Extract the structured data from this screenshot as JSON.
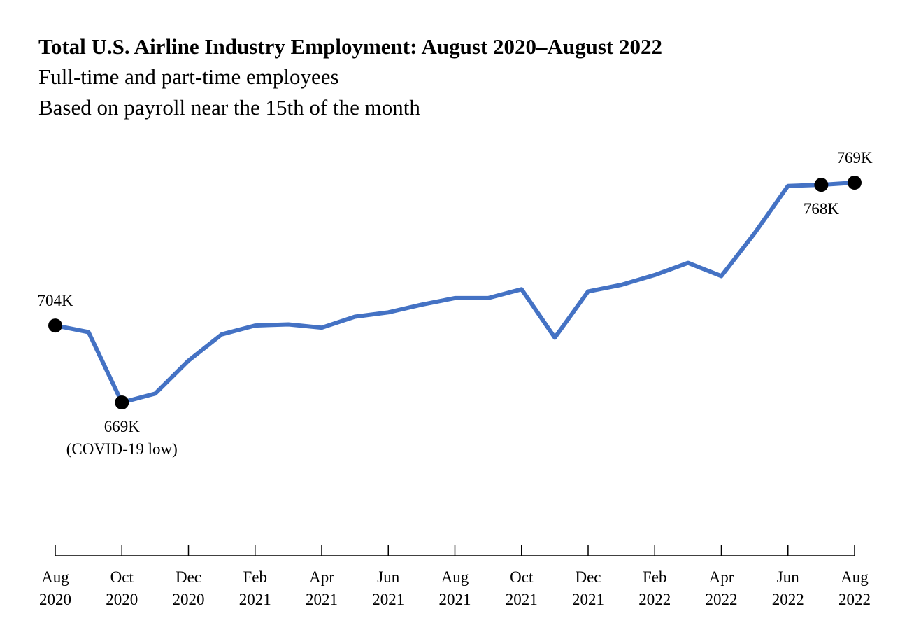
{
  "colors": {
    "line": "#4472C4",
    "marker": "#000000",
    "axis": "#000000",
    "text": "#000000"
  },
  "chart_data": {
    "type": "line",
    "title": "Total U.S. Airline Industry Employment: August 2020–August 2022",
    "subtitle_lines": [
      "Full-time and part-time employees",
      "Based on payroll near the 15th of the month"
    ],
    "xlabel": "",
    "ylabel": "",
    "grid": false,
    "legend": "none",
    "x_unit": "month",
    "ylim": [
      630,
      780
    ],
    "y_axis_visible": false,
    "series": [
      {
        "name": "Total U.S. Airline Industry Employment (thousands)",
        "x": [
          "Aug 2020",
          "Sep 2020",
          "Oct 2020",
          "Nov 2020",
          "Dec 2020",
          "Jan 2021",
          "Feb 2021",
          "Mar 2021",
          "Apr 2021",
          "May 2021",
          "Jun 2021",
          "Jul 2021",
          "Aug 2021",
          "Sep 2021",
          "Oct 2021",
          "Nov 2021",
          "Dec 2021",
          "Jan 2022",
          "Feb 2022",
          "Mar 2022",
          "Apr 2022",
          "May 2022",
          "Jun 2022",
          "Jul 2022",
          "Aug 2022"
        ],
        "values": [
          704,
          701,
          669,
          673,
          688,
          700,
          704,
          704.5,
          703,
          708,
          710,
          713.5,
          716.5,
          716.5,
          720.5,
          698.5,
          719.5,
          722.5,
          727,
          732.5,
          726.5,
          746,
          767.5,
          768,
          769
        ]
      }
    ],
    "ticks": [
      {
        "index": 0,
        "line1": "Aug",
        "line2": "2020"
      },
      {
        "index": 2,
        "line1": "Oct",
        "line2": "2020"
      },
      {
        "index": 4,
        "line1": "Dec",
        "line2": "2020"
      },
      {
        "index": 6,
        "line1": "Feb",
        "line2": "2021"
      },
      {
        "index": 8,
        "line1": "Apr",
        "line2": "2021"
      },
      {
        "index": 10,
        "line1": "Jun",
        "line2": "2021"
      },
      {
        "index": 12,
        "line1": "Aug",
        "line2": "2021"
      },
      {
        "index": 14,
        "line1": "Oct",
        "line2": "2021"
      },
      {
        "index": 16,
        "line1": "Dec",
        "line2": "2021"
      },
      {
        "index": 18,
        "line1": "Feb",
        "line2": "2022"
      },
      {
        "index": 20,
        "line1": "Apr",
        "line2": "2022"
      },
      {
        "index": 22,
        "line1": "Jun",
        "line2": "2022"
      },
      {
        "index": 24,
        "line1": "Aug",
        "line2": "2022"
      }
    ],
    "annotations": [
      {
        "index": 0,
        "lines": [
          "704K"
        ],
        "placement": "above"
      },
      {
        "index": 2,
        "lines": [
          "669K",
          "(COVID-19 low)"
        ],
        "placement": "below"
      },
      {
        "index": 23,
        "lines": [
          "768K"
        ],
        "placement": "below"
      },
      {
        "index": 24,
        "lines": [
          "769K"
        ],
        "placement": "above"
      }
    ]
  }
}
